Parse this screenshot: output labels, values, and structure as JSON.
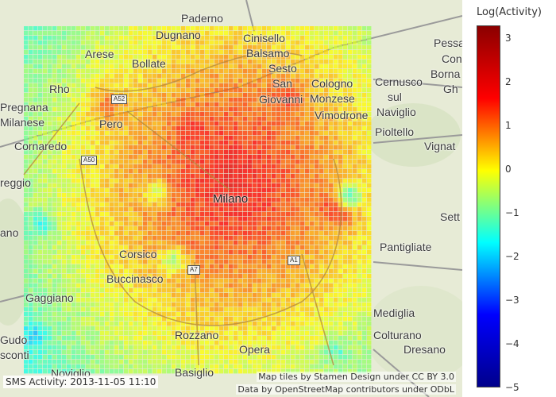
{
  "status_label": "SMS Activity: 2013-11-05 11:10",
  "attribution": {
    "line1": "Map tiles by Stamen Design under CC BY 3.0",
    "line2": "Data by OpenStreetMap contributors under ODbL"
  },
  "colorbar": {
    "title": "Log(Activity)",
    "min": -5,
    "max": 3.3,
    "ticks": [
      {
        "value": 3,
        "label": "3"
      },
      {
        "value": 2,
        "label": "2"
      },
      {
        "value": 1,
        "label": "1"
      },
      {
        "value": 0,
        "label": "0"
      },
      {
        "value": -1,
        "label": "−1"
      },
      {
        "value": -2,
        "label": "−2"
      },
      {
        "value": -3,
        "label": "−3"
      },
      {
        "value": -4,
        "label": "−4"
      },
      {
        "value": -5,
        "label": "−5"
      }
    ],
    "colorscale": [
      "#00008b",
      "#0000ff",
      "#00ffff",
      "#ffff00",
      "#ff0000",
      "#8b0000"
    ]
  },
  "places": {
    "paderno": "Paderno",
    "dugnano": "Dugnano",
    "cinisello": "Cinisello",
    "balsamo": "Balsamo",
    "pessa": "Pessa",
    "con": "Con",
    "borna": "Borna",
    "gh": "Gh",
    "arese": "Arese",
    "bollate": "Bollate",
    "sesto": "Sesto",
    "san": "San",
    "giovanni": "Giovanni",
    "cologno": "Cologno",
    "monzese": "Monzese",
    "cernusco": "Cernusco",
    "sul": "sul",
    "naviglio": "Naviglio",
    "rho": "Rho",
    "pregnana": "Pregnana",
    "milanese": "Milanese",
    "pero": "Pero",
    "vimodrone": "Vimodrone",
    "pioltello": "Pioltello",
    "cornaredo": "Cornaredo",
    "vignat": "Vignat",
    "reggio": "reggio",
    "milano": "Milano",
    "sett": "Sett",
    "ano": "ano",
    "pantigliate": "Pantigliate",
    "corsico": "Corsico",
    "buccinasco": "Buccinasco",
    "gaggiano": "Gaggiano",
    "mediglia": "Mediglia",
    "gudo": "Gudo",
    "visconti": "sconti",
    "rozzano": "Rozzano",
    "opera": "Opera",
    "colturano": "Colturano",
    "dresano": "Dresano",
    "basiglio": "Basiglio",
    "noviglio": "Noviglio"
  },
  "road_shields": {
    "a52": "A52",
    "a50": "A50",
    "a7": "A7",
    "a1": "A1"
  }
}
